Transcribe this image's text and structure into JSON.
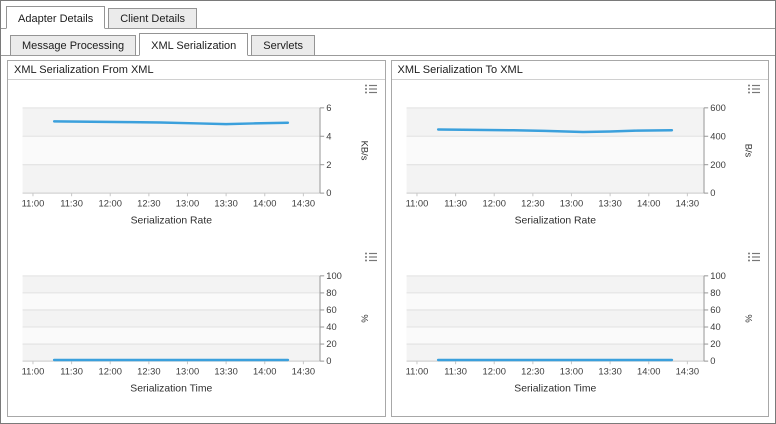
{
  "tabs_level1": [
    {
      "label": "Adapter Details",
      "active": true
    },
    {
      "label": "Client Details",
      "active": false
    }
  ],
  "tabs_level2": [
    {
      "label": "Message Processing",
      "active": false
    },
    {
      "label": "XML Serialization",
      "active": true
    },
    {
      "label": "Servlets",
      "active": false
    }
  ],
  "panels": [
    {
      "title": "XML Serialization From XML"
    },
    {
      "title": "XML Serialization To XML"
    }
  ],
  "colors": {
    "line": "#3ba0dc",
    "grid": "#e2e2e2",
    "axis": "#9a9a9a",
    "plot_bg": "#fafafa",
    "band": "#f3f3f3"
  },
  "chart_data": [
    {
      "type": "line",
      "panel": "XML Serialization From XML",
      "xlabel": "Serialization Rate",
      "ylabel": "KB/s",
      "ylim": [
        0,
        6
      ],
      "yticks": [
        0,
        2,
        4,
        6
      ],
      "xticks": [
        "11:00",
        "11:30",
        "12:00",
        "12:30",
        "13:00",
        "13:30",
        "14:00",
        "14:30"
      ],
      "series": [
        {
          "name": "Serialization Rate",
          "points": [
            [
              0.55,
              5.05
            ],
            [
              1.5,
              5.02
            ],
            [
              2.5,
              5.0
            ],
            [
              3.3,
              4.97
            ],
            [
              4.3,
              4.9
            ],
            [
              5.0,
              4.85
            ],
            [
              5.7,
              4.9
            ],
            [
              6.6,
              4.95
            ]
          ]
        }
      ]
    },
    {
      "type": "line",
      "panel": "XML Serialization From XML",
      "xlabel": "Serialization Time",
      "ylabel": "%",
      "ylim": [
        0,
        100
      ],
      "yticks": [
        0,
        20,
        40,
        60,
        80,
        100
      ],
      "xticks": [
        "11:00",
        "11:30",
        "12:00",
        "12:30",
        "13:00",
        "13:30",
        "14:00",
        "14:30"
      ],
      "series": [
        {
          "name": "Serialization Time",
          "points": [
            [
              0.55,
              1.3
            ],
            [
              2.0,
              1.3
            ],
            [
              4.0,
              1.3
            ],
            [
              6.6,
              1.3
            ]
          ]
        }
      ]
    },
    {
      "type": "line",
      "panel": "XML Serialization To XML",
      "xlabel": "Serialization Rate",
      "ylabel": "B/s",
      "ylim": [
        0,
        600
      ],
      "yticks": [
        0,
        200,
        400,
        600
      ],
      "xticks": [
        "11:00",
        "11:30",
        "12:00",
        "12:30",
        "13:00",
        "13:30",
        "14:00",
        "14:30"
      ],
      "series": [
        {
          "name": "Serialization Rate",
          "points": [
            [
              0.55,
              448
            ],
            [
              1.5,
              445
            ],
            [
              2.5,
              442
            ],
            [
              3.3,
              438
            ],
            [
              4.3,
              430
            ],
            [
              5.0,
              433
            ],
            [
              5.7,
              440
            ],
            [
              6.6,
              443
            ]
          ]
        }
      ]
    },
    {
      "type": "line",
      "panel": "XML Serialization To XML",
      "xlabel": "Serialization Time",
      "ylabel": "%",
      "ylim": [
        0,
        100
      ],
      "yticks": [
        0,
        20,
        40,
        60,
        80,
        100
      ],
      "xticks": [
        "11:00",
        "11:30",
        "12:00",
        "12:30",
        "13:00",
        "13:30",
        "14:00",
        "14:30"
      ],
      "series": [
        {
          "name": "Serialization Time",
          "points": [
            [
              0.55,
              1.3
            ],
            [
              2.0,
              1.3
            ],
            [
              4.0,
              1.3
            ],
            [
              6.6,
              1.3
            ]
          ]
        }
      ]
    }
  ]
}
